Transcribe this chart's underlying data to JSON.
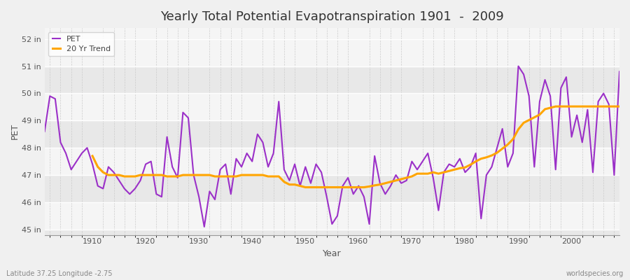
{
  "title": "Yearly Total Potential Evapotranspiration 1901  -  2009",
  "xlabel": "Year",
  "ylabel": "PET",
  "subtitle_left": "Latitude 37.25 Longitude -2.75",
  "subtitle_right": "worldspecies.org",
  "pet_color": "#9B30C8",
  "trend_color": "#FFA500",
  "bg_color": "#F0F0F0",
  "plot_bg_light": "#F5F5F5",
  "plot_bg_dark": "#E8E8E8",
  "ylim": [
    44.8,
    52.4
  ],
  "yticks": [
    45,
    46,
    47,
    48,
    49,
    50,
    51,
    52
  ],
  "ytick_labels": [
    "45 in",
    "46 in",
    "47 in",
    "48 in",
    "49 in",
    "50 in",
    "51 in",
    "52 in"
  ],
  "xlim_left": 1901,
  "xlim_right": 2009,
  "years": [
    1901,
    1902,
    1903,
    1904,
    1905,
    1906,
    1907,
    1908,
    1909,
    1910,
    1911,
    1912,
    1913,
    1914,
    1915,
    1916,
    1917,
    1918,
    1919,
    1920,
    1921,
    1922,
    1923,
    1924,
    1925,
    1926,
    1927,
    1928,
    1929,
    1930,
    1931,
    1932,
    1933,
    1934,
    1935,
    1936,
    1937,
    1938,
    1939,
    1940,
    1941,
    1942,
    1943,
    1944,
    1945,
    1946,
    1947,
    1948,
    1949,
    1950,
    1951,
    1952,
    1953,
    1954,
    1955,
    1956,
    1957,
    1958,
    1959,
    1960,
    1961,
    1962,
    1963,
    1964,
    1965,
    1966,
    1967,
    1968,
    1969,
    1970,
    1971,
    1972,
    1973,
    1974,
    1975,
    1976,
    1977,
    1978,
    1979,
    1980,
    1981,
    1982,
    1983,
    1984,
    1985,
    1986,
    1987,
    1988,
    1989,
    1990,
    1991,
    1992,
    1993,
    1994,
    1995,
    1996,
    1997,
    1998,
    1999,
    2000,
    2001,
    2002,
    2003,
    2004,
    2005,
    2006,
    2007,
    2008,
    2009
  ],
  "pet_values": [
    48.6,
    49.9,
    49.8,
    48.2,
    47.8,
    47.2,
    47.5,
    47.8,
    48.0,
    47.4,
    46.6,
    46.5,
    47.3,
    47.1,
    46.8,
    46.5,
    46.3,
    46.5,
    46.8,
    47.4,
    47.5,
    46.3,
    46.2,
    48.4,
    47.3,
    46.9,
    49.3,
    49.1,
    47.0,
    46.2,
    45.1,
    46.4,
    46.1,
    47.2,
    47.4,
    46.3,
    47.6,
    47.3,
    47.8,
    47.5,
    48.5,
    48.2,
    47.3,
    47.8,
    49.7,
    47.2,
    46.8,
    47.4,
    46.6,
    47.3,
    46.7,
    47.4,
    47.1,
    46.2,
    45.2,
    45.5,
    46.6,
    46.9,
    46.3,
    46.6,
    46.2,
    45.2,
    47.7,
    46.7,
    46.3,
    46.6,
    47.0,
    46.7,
    46.8,
    47.5,
    47.2,
    47.5,
    47.8,
    46.9,
    45.7,
    47.1,
    47.4,
    47.3,
    47.6,
    47.1,
    47.3,
    47.8,
    45.4,
    47.0,
    47.3,
    48.0,
    48.7,
    47.3,
    47.8,
    51.0,
    50.7,
    49.9,
    47.3,
    49.7,
    50.5,
    49.9,
    47.2,
    50.2,
    50.6,
    48.4,
    49.2,
    48.2,
    49.4,
    47.1,
    49.7,
    50.0,
    49.6,
    47.0,
    50.8
  ],
  "trend_values": [
    null,
    null,
    null,
    null,
    null,
    null,
    null,
    null,
    null,
    47.7,
    47.3,
    47.1,
    47.0,
    47.0,
    47.0,
    46.95,
    46.95,
    46.95,
    47.0,
    47.0,
    47.0,
    47.0,
    47.0,
    46.95,
    46.95,
    46.95,
    47.0,
    47.0,
    47.0,
    47.0,
    47.0,
    47.0,
    46.95,
    46.95,
    46.95,
    46.95,
    46.95,
    47.0,
    47.0,
    47.0,
    47.0,
    47.0,
    46.95,
    46.95,
    46.95,
    46.75,
    46.65,
    46.65,
    46.6,
    46.55,
    46.55,
    46.55,
    46.55,
    46.55,
    46.55,
    46.55,
    46.55,
    46.55,
    46.55,
    46.55,
    46.55,
    46.58,
    46.62,
    46.65,
    46.7,
    46.75,
    46.8,
    46.85,
    46.9,
    46.95,
    47.05,
    47.05,
    47.05,
    47.1,
    47.05,
    47.1,
    47.15,
    47.2,
    47.25,
    47.28,
    47.38,
    47.5,
    47.6,
    47.65,
    47.72,
    47.82,
    47.97,
    48.12,
    48.32,
    48.68,
    48.92,
    49.02,
    49.12,
    49.22,
    49.42,
    49.47,
    49.52,
    49.52,
    49.52,
    49.52,
    49.52,
    49.52,
    49.52,
    49.52,
    49.52,
    49.52,
    49.52,
    49.52,
    49.52
  ]
}
